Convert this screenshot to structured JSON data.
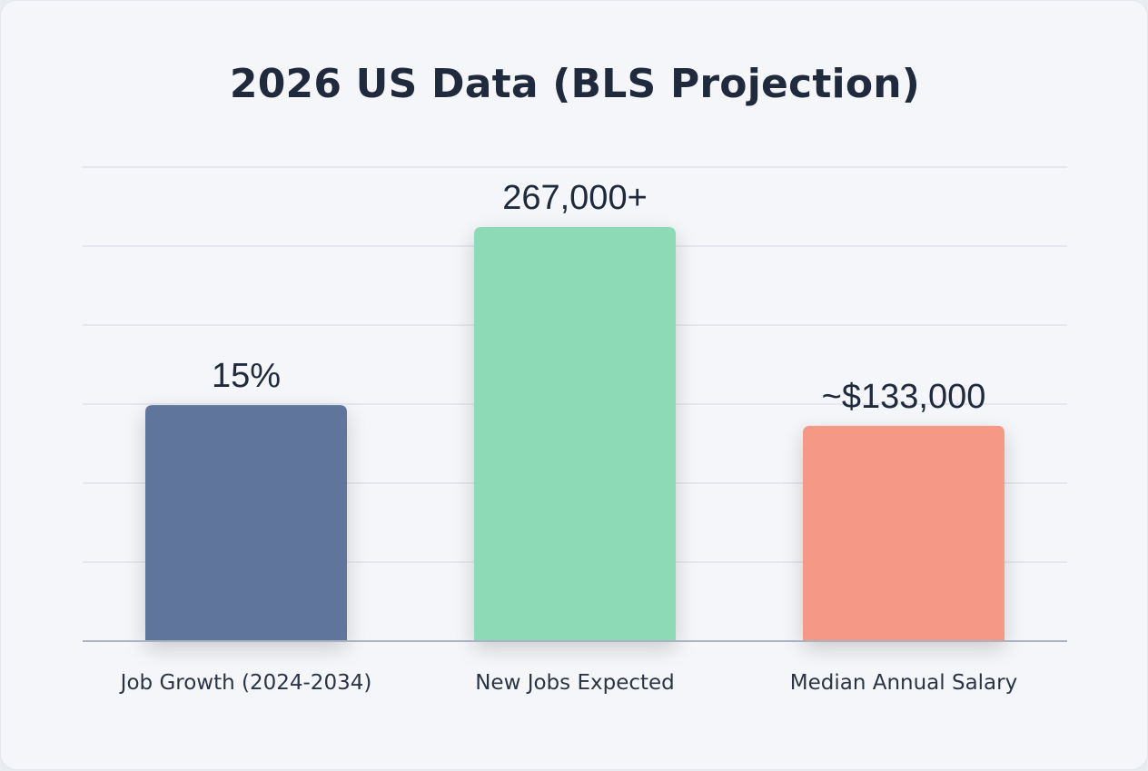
{
  "chart_data": {
    "type": "bar",
    "title": "2026 US Data (BLS Projection)",
    "categories": [
      "Job Growth (2024-2034)",
      "New Jobs Expected",
      "Median Annual Salary"
    ],
    "values": [
      15,
      267000,
      133000
    ],
    "value_labels": [
      "15%",
      "267,000+",
      "~$133,000"
    ],
    "relative_bar_heights": [
      0.57,
      1.0,
      0.52
    ],
    "colors": [
      "#60759b",
      "#8ddab6",
      "#f59886"
    ],
    "xlabel": "",
    "ylabel": "",
    "grid": true,
    "gridline_count": 6
  }
}
